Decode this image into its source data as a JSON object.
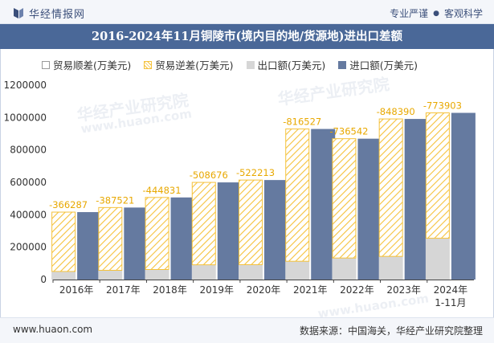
{
  "header": {
    "brand": "华经情报网",
    "tagline_left": "专业严谨",
    "tagline_sep": "●",
    "tagline_right": "客观科学"
  },
  "title": "2016-2024年11月铜陵市(境内目的地/货源地)进出口差额",
  "legend": {
    "surplus": "贸易顺差(万美元)",
    "deficit": "贸易逆差(万美元)",
    "export": "出口额(万美元)",
    "import": "进口额(万美元)"
  },
  "watermarks": [
    "华经产业研究院",
    "www.huaon.com",
    "华经产业研究院",
    "www.huaon.com"
  ],
  "footer": {
    "website": "www.huaon.com",
    "source": "数据来源：中国海关，华经产业研究院整理"
  },
  "colors": {
    "header_bg": "#4a6898",
    "export": "#d6d6d6",
    "import": "#657aa0",
    "deficit": "#f5c23c",
    "label": "#e8a800"
  },
  "chart_data": {
    "type": "bar",
    "categories": [
      "2016年",
      "2017年",
      "2018年",
      "2019年",
      "2020年",
      "2021年",
      "2022年",
      "2023年",
      "2024年\n1-11月"
    ],
    "yticks": [
      "0",
      "200000",
      "400000",
      "600000",
      "800000",
      "1000000",
      "1200000"
    ],
    "ylim": [
      0,
      1200000
    ],
    "series": [
      {
        "name": "出口额(万美元)",
        "values": [
          50000,
          57000,
          62000,
          91000,
          92000,
          113000,
          133000,
          143000,
          255000
        ]
      },
      {
        "name": "进口额(万美元)",
        "values": [
          416287,
          444521,
          506831,
          599676,
          614213,
          929527,
          869542,
          991390,
          1028903
        ]
      },
      {
        "name": "贸易逆差(万美元)",
        "values": [
          -366287,
          -387521,
          -444831,
          -508676,
          -522213,
          -816527,
          -736542,
          -848390,
          -773903
        ]
      }
    ],
    "data_labels": [
      "-366287",
      "-387521",
      "-444831",
      "-508676",
      "-522213",
      "-816527",
      "-736542",
      "-848390",
      "-773903"
    ]
  }
}
